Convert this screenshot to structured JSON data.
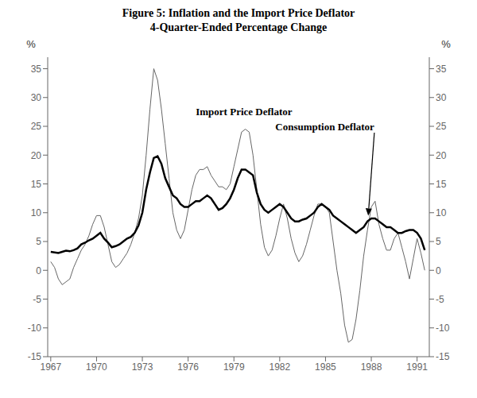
{
  "chart_data": {
    "type": "line",
    "title": "Figure 5: Inflation and the Import Price Deflator",
    "subtitle": "4-Quarter-Ended Percentage Change",
    "y_unit_label": "%",
    "xlim": [
      1966.8,
      1991.8
    ],
    "xticks": [
      1967,
      1970,
      1973,
      1976,
      1979,
      1982,
      1985,
      1988,
      1991
    ],
    "ylim": [
      -15,
      37
    ],
    "yticks": [
      -15,
      -10,
      -5,
      0,
      5,
      10,
      15,
      20,
      25,
      30,
      35
    ],
    "y2lim": [
      -15,
      37
    ],
    "y2ticks": [
      -15,
      -10,
      -5,
      0,
      5,
      10,
      15,
      20,
      25,
      30,
      35
    ],
    "x": [
      1967.0,
      1967.25,
      1967.5,
      1967.75,
      1968.0,
      1968.25,
      1968.5,
      1968.75,
      1969.0,
      1969.25,
      1969.5,
      1969.75,
      1970.0,
      1970.25,
      1970.5,
      1970.75,
      1971.0,
      1971.25,
      1971.5,
      1971.75,
      1972.0,
      1972.25,
      1972.5,
      1972.75,
      1973.0,
      1973.25,
      1973.5,
      1973.75,
      1974.0,
      1974.25,
      1974.5,
      1974.75,
      1975.0,
      1975.25,
      1975.5,
      1975.75,
      1976.0,
      1976.25,
      1976.5,
      1976.75,
      1977.0,
      1977.25,
      1977.5,
      1977.75,
      1978.0,
      1978.25,
      1978.5,
      1978.75,
      1979.0,
      1979.25,
      1979.5,
      1979.75,
      1980.0,
      1980.25,
      1980.5,
      1980.75,
      1981.0,
      1981.25,
      1981.5,
      1981.75,
      1982.0,
      1982.25,
      1982.5,
      1982.75,
      1983.0,
      1983.25,
      1983.5,
      1983.75,
      1984.0,
      1984.25,
      1984.5,
      1984.75,
      1985.0,
      1985.25,
      1985.5,
      1985.75,
      1986.0,
      1986.25,
      1986.5,
      1986.75,
      1987.0,
      1987.25,
      1987.5,
      1987.75,
      1988.0,
      1988.25,
      1988.5,
      1988.75,
      1989.0,
      1989.25,
      1989.5,
      1989.75,
      1990.0,
      1990.25,
      1990.5,
      1990.75,
      1991.0,
      1991.25,
      1991.5
    ],
    "series": [
      {
        "color": "#666666",
        "values": [
          1.5,
          0.5,
          -1.5,
          -2.5,
          -2.0,
          -1.5,
          0.5,
          2.0,
          3.5,
          4.5,
          6.0,
          8.0,
          9.5,
          9.5,
          7.5,
          4.5,
          1.5,
          0.5,
          1.0,
          2.0,
          3.0,
          4.5,
          6.5,
          9.0,
          13.0,
          20.0,
          28.0,
          35.0,
          33.0,
          28.0,
          22.0,
          16.0,
          10.0,
          7.0,
          5.5,
          7.0,
          10.5,
          14.0,
          16.5,
          17.5,
          17.5,
          18.0,
          16.5,
          15.5,
          14.5,
          14.5,
          14.0,
          15.0,
          18.0,
          21.0,
          24.0,
          24.5,
          24.0,
          20.0,
          14.0,
          8.0,
          4.0,
          2.5,
          3.5,
          6.0,
          9.0,
          11.5,
          9.0,
          5.5,
          3.0,
          1.5,
          2.5,
          4.5,
          7.0,
          9.5,
          11.5,
          11.5,
          11.0,
          10.0,
          5.0,
          0.0,
          -4.0,
          -9.5,
          -12.5,
          -12.0,
          -8.5,
          -3.5,
          2.5,
          7.0,
          11.0,
          12.0,
          8.0,
          5.5,
          3.5,
          3.5,
          5.5,
          6.5,
          4.0,
          1.5,
          -1.5,
          2.0,
          5.5,
          3.0,
          0.0
        ]
      },
      {
        "color": "#000000",
        "values": [
          3.2,
          3.1,
          3.0,
          3.2,
          3.4,
          3.3,
          3.5,
          3.8,
          4.5,
          4.8,
          5.2,
          5.5,
          6.0,
          6.5,
          5.5,
          4.8,
          4.0,
          4.2,
          4.5,
          5.0,
          5.5,
          5.8,
          6.5,
          7.8,
          10.0,
          14.0,
          17.0,
          19.5,
          19.8,
          18.5,
          16.0,
          14.5,
          13.0,
          12.5,
          11.5,
          11.0,
          11.0,
          11.5,
          12.0,
          12.0,
          12.5,
          13.0,
          12.5,
          11.5,
          10.5,
          10.8,
          11.5,
          12.5,
          14.0,
          16.0,
          17.5,
          17.5,
          17.0,
          16.5,
          13.5,
          11.5,
          10.5,
          10.0,
          10.5,
          11.0,
          11.5,
          11.0,
          10.0,
          9.0,
          8.5,
          8.5,
          8.8,
          9.0,
          9.5,
          10.0,
          11.0,
          11.5,
          11.0,
          10.5,
          9.5,
          9.0,
          8.5,
          8.0,
          7.5,
          7.0,
          6.5,
          7.0,
          7.5,
          8.5,
          9.0,
          9.0,
          8.5,
          8.0,
          7.5,
          7.5,
          7.0,
          6.5,
          6.5,
          6.8,
          7.0,
          7.0,
          6.5,
          5.5,
          3.5
        ]
      }
    ],
    "annotations": [
      {
        "text": "Import Price Deflator",
        "x": 1976.5,
        "y": 27.5
      },
      {
        "text": "Consumption Deflator",
        "x": 1988.2,
        "y": 25.0,
        "arrow_x": 1987.8,
        "arrow_y": 9.5
      }
    ]
  }
}
